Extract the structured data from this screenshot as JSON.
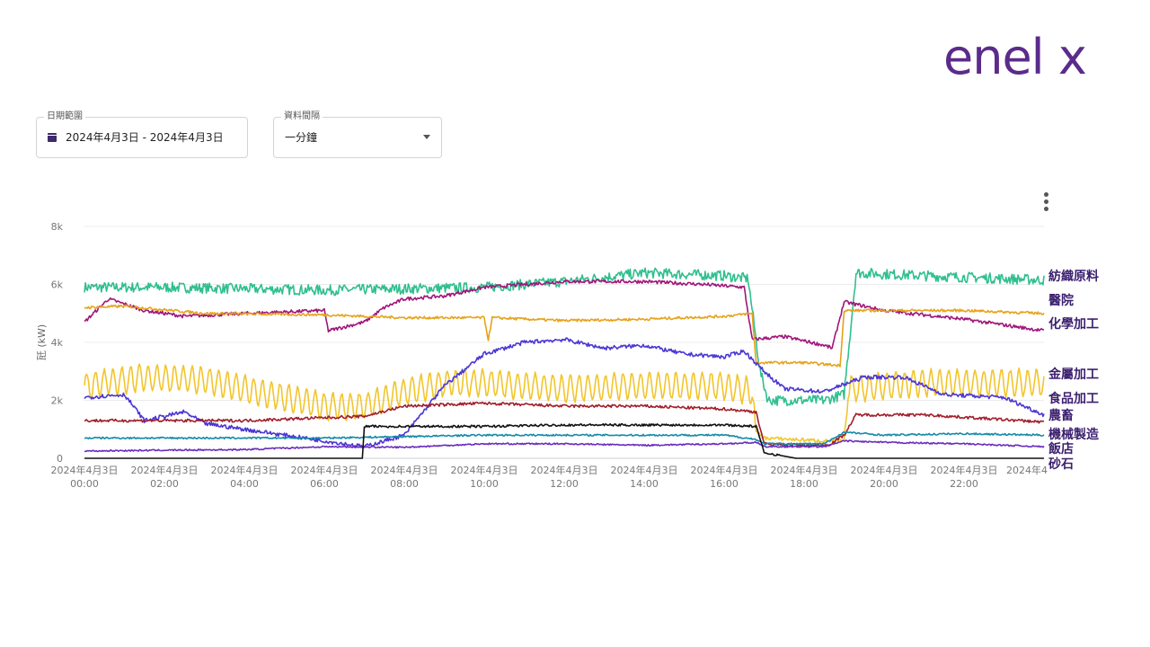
{
  "brand": {
    "logo_text": "enel x",
    "logo_color": "#5b2b8c"
  },
  "filters": {
    "date_range_label": "日期範圍",
    "date_range_value": "2024年4月3日 - 2024年4月3日",
    "interval_label": "資料間隔",
    "interval_value": "一分鐘"
  },
  "chart_data": {
    "type": "line",
    "ylabel": "瓩 (kW)",
    "ylim": [
      0,
      8000
    ],
    "yticks": [
      "0",
      "2k",
      "4k",
      "6k",
      "8k"
    ],
    "xlim": [
      0,
      24
    ],
    "xticks": [
      {
        "date": "2024年4月3日",
        "time": "00:00"
      },
      {
        "date": "2024年4月3日",
        "time": "02:00"
      },
      {
        "date": "2024年4月3日",
        "time": "04:00"
      },
      {
        "date": "2024年4月3日",
        "time": "06:00"
      },
      {
        "date": "2024年4月3日",
        "time": "08:00"
      },
      {
        "date": "2024年4月3日",
        "time": "10:00"
      },
      {
        "date": "2024年4月3日",
        "time": "12:00"
      },
      {
        "date": "2024年4月3日",
        "time": "14:00"
      },
      {
        "date": "2024年4月3日",
        "time": "16:00"
      },
      {
        "date": "2024年4月3日",
        "time": "18:00"
      },
      {
        "date": "2024年4月3日",
        "time": "20:00"
      },
      {
        "date": "2024年4月3日",
        "time": "22:00"
      }
    ],
    "grid": true,
    "series": [
      {
        "name": "紡織原料",
        "color": "#2fbf8f",
        "noise": 180,
        "points": [
          [
            0,
            5900
          ],
          [
            2,
            5900
          ],
          [
            4,
            5850
          ],
          [
            6,
            5800
          ],
          [
            8,
            5850
          ],
          [
            10,
            5900
          ],
          [
            12,
            6100
          ],
          [
            14,
            6400
          ],
          [
            16,
            6300
          ],
          [
            16.6,
            6200
          ],
          [
            16.9,
            3000
          ],
          [
            17.1,
            2000
          ],
          [
            18.5,
            2000
          ],
          [
            19,
            2200
          ],
          [
            19.3,
            6400
          ],
          [
            21,
            6300
          ],
          [
            24,
            6150
          ]
        ]
      },
      {
        "name": "化學加工",
        "color": "#a0157a",
        "noise": 60,
        "points": [
          [
            0,
            4700
          ],
          [
            0.6,
            5500
          ],
          [
            1.5,
            5100
          ],
          [
            2.5,
            4900
          ],
          [
            4,
            5000
          ],
          [
            6,
            5100
          ],
          [
            6.1,
            4400
          ],
          [
            7,
            4700
          ],
          [
            7.5,
            5200
          ],
          [
            8,
            5500
          ],
          [
            9,
            5600
          ],
          [
            10,
            5900
          ],
          [
            12,
            6100
          ],
          [
            14,
            6100
          ],
          [
            15.5,
            6000
          ],
          [
            16.5,
            5900
          ],
          [
            16.7,
            4100
          ],
          [
            17.5,
            4200
          ],
          [
            18.5,
            3900
          ],
          [
            18.7,
            3800
          ],
          [
            19,
            5400
          ],
          [
            20,
            5100
          ],
          [
            22,
            4800
          ],
          [
            24,
            4400
          ]
        ]
      },
      {
        "name": "醫院",
        "color": "#e6a21a",
        "noise": 45,
        "points": [
          [
            0,
            5200
          ],
          [
            1,
            5250
          ],
          [
            3,
            5000
          ],
          [
            6,
            4950
          ],
          [
            8,
            4850
          ],
          [
            9,
            4850
          ],
          [
            10,
            4850
          ],
          [
            10.1,
            4100
          ],
          [
            10.2,
            4850
          ],
          [
            12,
            4750
          ],
          [
            14,
            4800
          ],
          [
            16,
            4900
          ],
          [
            16.7,
            5000
          ],
          [
            16.8,
            3300
          ],
          [
            18,
            3300
          ],
          [
            18.9,
            3200
          ],
          [
            19,
            5100
          ],
          [
            22,
            5100
          ],
          [
            24,
            5000
          ]
        ]
      },
      {
        "name": "金屬加工",
        "color": "#f2c52b",
        "noise": 60,
        "amp": 450,
        "period": 0.22,
        "points": [
          [
            0,
            2500
          ],
          [
            1.5,
            2800
          ],
          [
            3,
            2700
          ],
          [
            5,
            2100
          ],
          [
            6,
            1800
          ],
          [
            7,
            1800
          ],
          [
            8,
            2300
          ],
          [
            9,
            2600
          ],
          [
            10,
            2600
          ],
          [
            12,
            2400
          ],
          [
            14,
            2500
          ],
          [
            16,
            2500
          ],
          [
            16.7,
            2300
          ],
          [
            16.8,
            900
          ],
          [
            17,
            700
          ],
          [
            18.5,
            600
          ],
          [
            19,
            600
          ],
          [
            19.1,
            2400
          ],
          [
            21,
            2600
          ],
          [
            24,
            2600
          ]
        ]
      },
      {
        "name": "食品加工",
        "color": "#4a36d4",
        "noise": 70,
        "points": [
          [
            0,
            2100
          ],
          [
            1,
            2200
          ],
          [
            1.5,
            1300
          ],
          [
            2.5,
            1600
          ],
          [
            3,
            1200
          ],
          [
            4,
            1000
          ],
          [
            5.5,
            700
          ],
          [
            7,
            400
          ],
          [
            8,
            800
          ],
          [
            9,
            2500
          ],
          [
            10,
            3600
          ],
          [
            11,
            4000
          ],
          [
            12,
            4100
          ],
          [
            13,
            3800
          ],
          [
            14,
            3900
          ],
          [
            15,
            3600
          ],
          [
            16,
            3500
          ],
          [
            16.5,
            3700
          ],
          [
            17,
            3000
          ],
          [
            17.5,
            2400
          ],
          [
            18.5,
            2300
          ],
          [
            19.5,
            2800
          ],
          [
            20.5,
            2800
          ],
          [
            21.5,
            2200
          ],
          [
            23,
            2100
          ],
          [
            24,
            1500
          ]
        ]
      },
      {
        "name": "農畜",
        "color": "#a11e2a",
        "noise": 50,
        "points": [
          [
            0,
            1300
          ],
          [
            2,
            1300
          ],
          [
            4,
            1300
          ],
          [
            6,
            1400
          ],
          [
            7,
            1450
          ],
          [
            8,
            1800
          ],
          [
            10,
            1900
          ],
          [
            12,
            1800
          ],
          [
            14,
            1800
          ],
          [
            16,
            1700
          ],
          [
            16.8,
            1600
          ],
          [
            17,
            500
          ],
          [
            18,
            450
          ],
          [
            18.6,
            450
          ],
          [
            19,
            800
          ],
          [
            19.3,
            1500
          ],
          [
            21,
            1500
          ],
          [
            24,
            1250
          ]
        ]
      },
      {
        "name": "機械製造",
        "color": "#138aa8",
        "noise": 30,
        "points": [
          [
            0,
            700
          ],
          [
            2,
            700
          ],
          [
            4,
            700
          ],
          [
            6,
            700
          ],
          [
            8,
            750
          ],
          [
            10,
            800
          ],
          [
            12,
            800
          ],
          [
            14,
            800
          ],
          [
            16,
            800
          ],
          [
            16.8,
            650
          ],
          [
            17,
            500
          ],
          [
            18.5,
            500
          ],
          [
            19,
            900
          ],
          [
            20,
            800
          ],
          [
            22,
            850
          ],
          [
            24,
            800
          ]
        ]
      },
      {
        "name": "飯店",
        "color": "#6a2cbf",
        "noise": 25,
        "points": [
          [
            0,
            250
          ],
          [
            2,
            280
          ],
          [
            4,
            300
          ],
          [
            6,
            400
          ],
          [
            8,
            380
          ],
          [
            10,
            500
          ],
          [
            12,
            500
          ],
          [
            14,
            450
          ],
          [
            16,
            500
          ],
          [
            16.8,
            550
          ],
          [
            17,
            400
          ],
          [
            18.5,
            400
          ],
          [
            19,
            600
          ],
          [
            20,
            550
          ],
          [
            22,
            500
          ],
          [
            24,
            400
          ]
        ]
      },
      {
        "name": "砂石",
        "color": "#111111",
        "noise": 40,
        "points": [
          [
            0,
            0
          ],
          [
            6.95,
            0
          ],
          [
            7,
            1100
          ],
          [
            9,
            1100
          ],
          [
            10,
            1100
          ],
          [
            12,
            1150
          ],
          [
            14,
            1150
          ],
          [
            16,
            1150
          ],
          [
            16.8,
            1100
          ],
          [
            17,
            200
          ],
          [
            17.8,
            0
          ],
          [
            24,
            0
          ]
        ]
      }
    ]
  }
}
